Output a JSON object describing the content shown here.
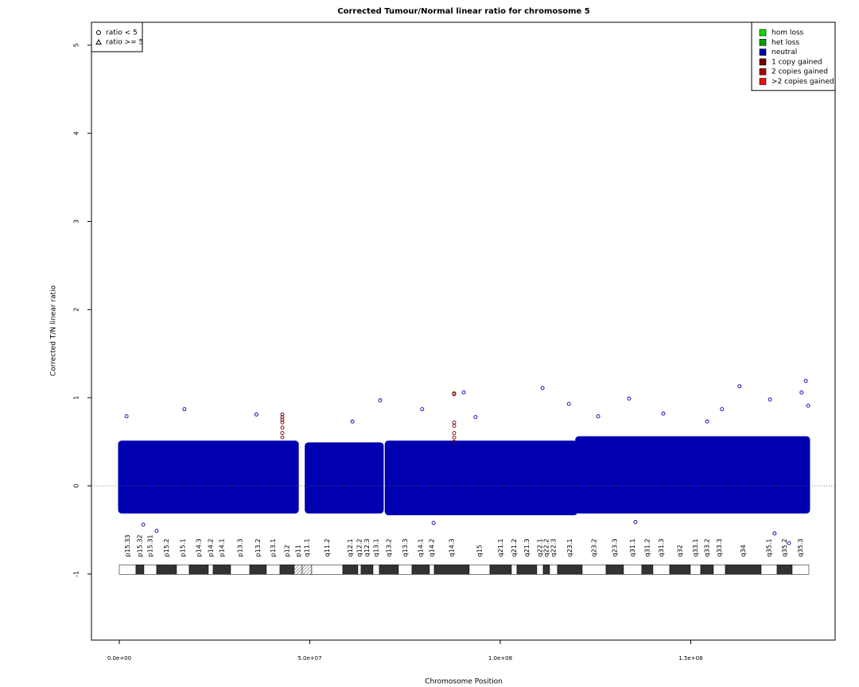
{
  "chart_data": {
    "type": "scatter",
    "title": "Corrected Tumour/Normal linear ratio for chromosome  5",
    "x_label": "Chromosome Position",
    "y_label": "Corrected T/N linear ratio",
    "xlim": [
      -7300000,
      187900000
    ],
    "ylim": [
      -1.75,
      5.26
    ],
    "xticks": [
      {
        "value": 0,
        "label": "0.0e+00"
      },
      {
        "value": 50000000,
        "label": "5.0e+07"
      },
      {
        "value": 100000000,
        "label": "1.0e+08"
      },
      {
        "value": 150000000,
        "label": "1.5e+08"
      }
    ],
    "yticks": [
      -1,
      0,
      1,
      2,
      3,
      4,
      5
    ],
    "hline": 0,
    "legend": "top-right",
    "shape_legend": [
      {
        "label": "ratio < 5",
        "shape": "circle"
      },
      {
        "label": "ratio >= 5",
        "shape": "triangle"
      }
    ],
    "series": [
      {
        "name": "hom loss",
        "color": "#00e000",
        "x": [],
        "values": []
      },
      {
        "name": "het loss",
        "color": "#00a000",
        "x": [],
        "values": []
      },
      {
        "name": "neutral",
        "color": "#0000b0",
        "dense": [
          {
            "x": [
              0,
              46800000
            ],
            "values": [
              -0.3,
              0.5
            ]
          },
          {
            "x": [
              49000000,
              69100000
            ],
            "values": [
              -0.3,
              0.48
            ]
          },
          {
            "x": [
              70000000,
              120000000
            ],
            "values": [
              -0.32,
              0.5
            ]
          },
          {
            "x": [
              120000000,
              181000000
            ],
            "values": [
              -0.3,
              0.55
            ]
          }
        ],
        "x": [
          1900000,
          17100000,
          36000000,
          68500000,
          79500000,
          90400000,
          111100000,
          118000000,
          133800000,
          142800000,
          158200000,
          162800000,
          170800000,
          180200000,
          179100000,
          180800000,
          9800000,
          6300000,
          172000000,
          175800000,
          82500000,
          135500000,
          61200000,
          93500000,
          125700000,
          154300000
        ],
        "values": [
          0.79,
          0.87,
          0.81,
          0.97,
          0.87,
          1.06,
          1.11,
          0.93,
          0.99,
          0.82,
          0.87,
          1.13,
          0.98,
          1.19,
          1.06,
          0.91,
          -0.51,
          -0.44,
          -0.54,
          -0.65,
          -0.42,
          -0.41,
          0.73,
          0.78,
          0.79,
          0.73
        ]
      },
      {
        "name": "1 copy gained",
        "color": "#7a0000",
        "x": [
          42800000,
          42800000,
          42800000,
          42800000,
          42800000,
          42800000,
          42800000,
          87900000,
          87900000,
          87900000,
          87900000,
          87900000,
          87900000,
          87900000
        ],
        "values": [
          0.81,
          0.78,
          0.75,
          0.72,
          0.66,
          0.6,
          0.55,
          1.05,
          1.04,
          0.72,
          0.68,
          0.6,
          0.55,
          0.5
        ]
      },
      {
        "name": "2 copies gained",
        "color": "#b00000",
        "x": [],
        "values": []
      },
      {
        "name": ">2 copies gained",
        "color": "#f01010",
        "x": [],
        "values": []
      }
    ],
    "ideogram": {
      "y": -0.95,
      "bands": [
        {
          "name": "p15.33",
          "start": 0,
          "end": 4380000,
          "stain": "gneg"
        },
        {
          "name": "p15.32",
          "start": 4380000,
          "end": 6470000,
          "stain": "gpos"
        },
        {
          "name": "p15.31",
          "start": 6470000,
          "end": 9810000,
          "stain": "gneg"
        },
        {
          "name": "p15.2",
          "start": 9810000,
          "end": 15030000,
          "stain": "gpos"
        },
        {
          "name": "p15.1",
          "start": 15030000,
          "end": 18370000,
          "stain": "gneg"
        },
        {
          "name": "p14.3",
          "start": 18370000,
          "end": 23380000,
          "stain": "gpos"
        },
        {
          "name": "p14.2",
          "start": 23380000,
          "end": 24640000,
          "stain": "gneg"
        },
        {
          "name": "p14.1",
          "start": 24640000,
          "end": 29230000,
          "stain": "gpos"
        },
        {
          "name": "p13.3",
          "start": 29230000,
          "end": 34240000,
          "stain": "gneg"
        },
        {
          "name": "p13.2",
          "start": 34240000,
          "end": 38620000,
          "stain": "gpos"
        },
        {
          "name": "p13.1",
          "start": 38620000,
          "end": 42170000,
          "stain": "gneg"
        },
        {
          "name": "p12",
          "start": 42170000,
          "end": 45930000,
          "stain": "gpos"
        },
        {
          "name": "p11",
          "start": 45930000,
          "end": 48020000,
          "stain": "acen"
        },
        {
          "name": "q11.1",
          "start": 48020000,
          "end": 50520000,
          "stain": "acen"
        },
        {
          "name": "q11.2",
          "start": 50520000,
          "end": 58670000,
          "stain": "gneg"
        },
        {
          "name": "q12.1",
          "start": 58670000,
          "end": 62630000,
          "stain": "gpos"
        },
        {
          "name": "q12.2",
          "start": 62630000,
          "end": 63470000,
          "stain": "gneg"
        },
        {
          "name": "q12.3",
          "start": 63470000,
          "end": 66600000,
          "stain": "gpos"
        },
        {
          "name": "q13.1",
          "start": 66600000,
          "end": 68270000,
          "stain": "gneg"
        },
        {
          "name": "q13.2",
          "start": 68270000,
          "end": 73280000,
          "stain": "gpos"
        },
        {
          "name": "q13.3",
          "start": 73280000,
          "end": 76830000,
          "stain": "gneg"
        },
        {
          "name": "q14.1",
          "start": 76830000,
          "end": 81420000,
          "stain": "gpos"
        },
        {
          "name": "q14.2",
          "start": 81420000,
          "end": 82680000,
          "stain": "gneg"
        },
        {
          "name": "q14.3",
          "start": 82680000,
          "end": 91860000,
          "stain": "gpos"
        },
        {
          "name": "q15",
          "start": 91860000,
          "end": 97290000,
          "stain": "gneg"
        },
        {
          "name": "q21.1",
          "start": 97290000,
          "end": 102930000,
          "stain": "gpos"
        },
        {
          "name": "q21.2",
          "start": 102930000,
          "end": 104390000,
          "stain": "gneg"
        },
        {
          "name": "q21.3",
          "start": 104390000,
          "end": 109600000,
          "stain": "gpos"
        },
        {
          "name": "q22.1",
          "start": 109600000,
          "end": 111280000,
          "stain": "gneg"
        },
        {
          "name": "q22.2",
          "start": 111280000,
          "end": 112950000,
          "stain": "gpos"
        },
        {
          "name": "q22.3",
          "start": 112950000,
          "end": 115030000,
          "stain": "gneg"
        },
        {
          "name": "q23.1",
          "start": 115030000,
          "end": 121510000,
          "stain": "gpos"
        },
        {
          "name": "q23.2",
          "start": 121510000,
          "end": 127770000,
          "stain": "gneg"
        },
        {
          "name": "q23.3",
          "start": 127770000,
          "end": 132360000,
          "stain": "gpos"
        },
        {
          "name": "q31.1",
          "start": 132360000,
          "end": 137160000,
          "stain": "gneg"
        },
        {
          "name": "q31.2",
          "start": 137160000,
          "end": 140080000,
          "stain": "gpos"
        },
        {
          "name": "q31.3",
          "start": 140080000,
          "end": 144470000,
          "stain": "gneg"
        },
        {
          "name": "q32",
          "start": 144470000,
          "end": 149900000,
          "stain": "gpos"
        },
        {
          "name": "q33.1",
          "start": 149900000,
          "end": 152610000,
          "stain": "gneg"
        },
        {
          "name": "q33.2",
          "start": 152610000,
          "end": 155950000,
          "stain": "gpos"
        },
        {
          "name": "q33.3",
          "start": 155950000,
          "end": 159090000,
          "stain": "gneg"
        },
        {
          "name": "q34",
          "start": 159090000,
          "end": 168480000,
          "stain": "gpos"
        },
        {
          "name": "q35.1",
          "start": 168480000,
          "end": 172660000,
          "stain": "gneg"
        },
        {
          "name": "q35.2",
          "start": 172660000,
          "end": 176620000,
          "stain": "gpos"
        },
        {
          "name": "q35.3",
          "start": 176620000,
          "end": 181000000,
          "stain": "gneg"
        }
      ]
    }
  }
}
